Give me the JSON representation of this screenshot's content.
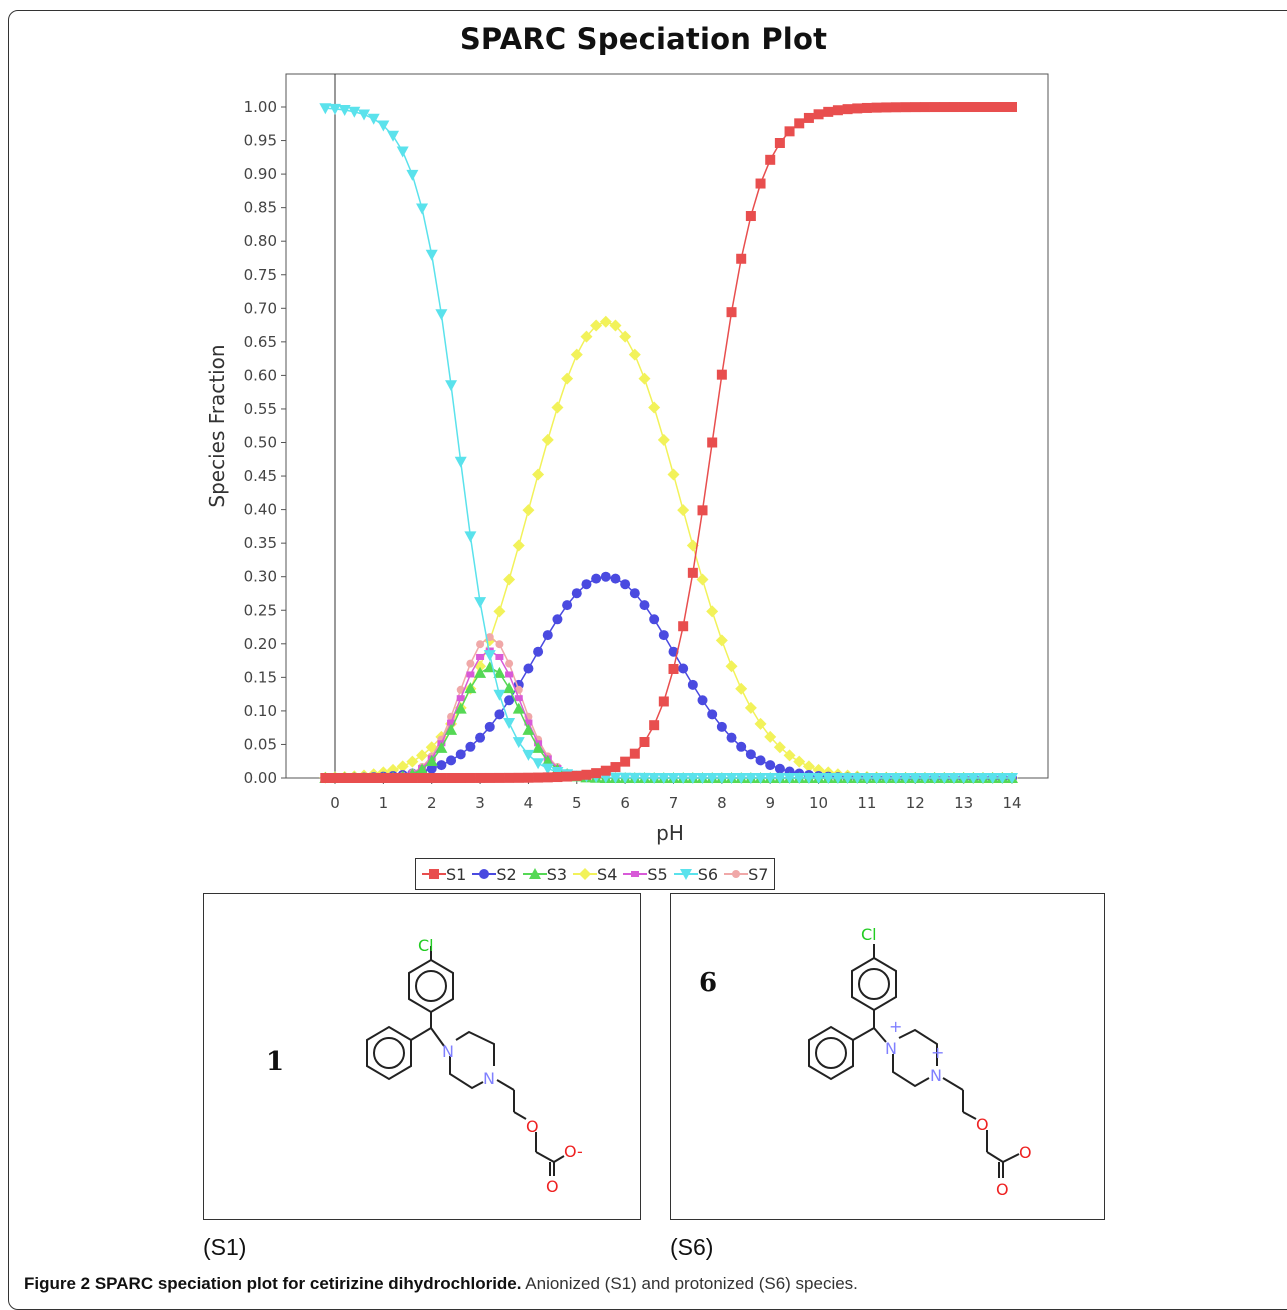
{
  "chart_data": {
    "type": "scatter",
    "title": "SPARC Speciation Plot",
    "xlabel": "pH",
    "ylabel": "Species Fraction",
    "xlim": [
      -0.9,
      14.8
    ],
    "ylim": [
      0,
      1.05
    ],
    "xticks": [
      0,
      1,
      2,
      3,
      4,
      5,
      6,
      7,
      8,
      9,
      10,
      11,
      12,
      13,
      14
    ],
    "yticks": [
      0,
      0.05,
      0.1,
      0.15,
      0.2,
      0.25,
      0.3,
      0.35,
      0.4,
      0.45,
      0.5,
      0.55,
      0.6,
      0.65,
      0.7,
      0.75,
      0.8,
      0.85,
      0.9,
      0.95,
      1.0
    ],
    "ytick_labels": [
      "0.00",
      "0.05",
      "0.10",
      "0.15",
      "0.20",
      "0.25",
      "0.30",
      "0.35",
      "0.40",
      "0.45",
      "0.50",
      "0.55",
      "0.60",
      "0.65",
      "0.70",
      "0.75",
      "0.80",
      "0.85",
      "0.90",
      "0.95",
      "1.00"
    ],
    "x_step": 0.2,
    "x_start": -0.2,
    "x_end": 14.0,
    "grid": false,
    "legend_position": "bottom-center",
    "vertical_reference_line_x": 0,
    "series": [
      {
        "name": "S1",
        "color": "#e84e4e",
        "marker": "square",
        "peaks": [
          {
            "type": "sigmoid_up",
            "center": 7.8,
            "k": 2.05,
            "amp": 1.0
          }
        ]
      },
      {
        "name": "S2",
        "color": "#4a4ae0",
        "marker": "circle",
        "peaks": [
          {
            "type": "gauss",
            "center": 5.6,
            "width": 1.45,
            "amp": 0.3
          }
        ]
      },
      {
        "name": "S3",
        "color": "#55d855",
        "marker": "triangle-up",
        "peaks": [
          {
            "type": "gauss",
            "center": 3.2,
            "width": 0.62,
            "amp": 0.165
          }
        ]
      },
      {
        "name": "S4",
        "color": "#f2f25a",
        "marker": "diamond",
        "peaks": [
          {
            "type": "gauss",
            "center": 5.6,
            "width": 1.55,
            "amp": 0.68
          }
        ]
      },
      {
        "name": "S5",
        "color": "#d85ad8",
        "marker": "square-small",
        "peaks": [
          {
            "type": "gauss",
            "center": 3.2,
            "width": 0.62,
            "amp": 0.19
          }
        ]
      },
      {
        "name": "S6",
        "color": "#5ae2ec",
        "marker": "triangle-down",
        "peaks": [
          {
            "type": "sigmoid_down",
            "center": 2.55,
            "k": 2.3,
            "amp": 1.0
          }
        ]
      },
      {
        "name": "S7",
        "color": "#f0a8a8",
        "marker": "circle-small",
        "peaks": [
          {
            "type": "gauss",
            "center": 3.2,
            "width": 0.62,
            "amp": 0.21
          }
        ]
      }
    ],
    "key_points": {
      "S1": [
        [
          0,
          0.0
        ],
        [
          6,
          0.02
        ],
        [
          7,
          0.21
        ],
        [
          7.4,
          0.4
        ],
        [
          7.8,
          0.51
        ],
        [
          8.0,
          0.62
        ],
        [
          8.2,
          0.72
        ],
        [
          9,
          0.96
        ],
        [
          10,
          1.0
        ],
        [
          14,
          1.0
        ]
      ],
      "S2": [
        [
          2.8,
          0.01
        ],
        [
          3.2,
          0.04
        ],
        [
          4.0,
          0.2
        ],
        [
          5.0,
          0.29
        ],
        [
          5.6,
          0.3
        ],
        [
          6.6,
          0.27
        ],
        [
          7.0,
          0.23
        ],
        [
          8.0,
          0.09
        ],
        [
          9.0,
          0.01
        ],
        [
          14,
          0.0
        ]
      ],
      "S3": [
        [
          1.6,
          0.01
        ],
        [
          2.4,
          0.07
        ],
        [
          3.2,
          0.165
        ],
        [
          3.8,
          0.13
        ],
        [
          4.6,
          0.01
        ]
      ],
      "S4": [
        [
          2.4,
          0.01
        ],
        [
          3.2,
          0.2
        ],
        [
          4.0,
          0.51
        ],
        [
          5.0,
          0.65
        ],
        [
          5.6,
          0.68
        ],
        [
          6.6,
          0.63
        ],
        [
          7.2,
          0.51
        ],
        [
          8.0,
          0.27
        ],
        [
          9.0,
          0.04
        ],
        [
          10,
          0.0
        ]
      ],
      "S5": [
        [
          1.6,
          0.01
        ],
        [
          2.4,
          0.08
        ],
        [
          3.2,
          0.19
        ],
        [
          4.0,
          0.09
        ],
        [
          4.6,
          0.01
        ]
      ],
      "S6": [
        [
          -0.2,
          1.0
        ],
        [
          0.6,
          0.99
        ],
        [
          1.2,
          0.97
        ],
        [
          1.6,
          0.93
        ],
        [
          2.0,
          0.87
        ],
        [
          2.4,
          0.76
        ],
        [
          2.6,
          0.65
        ],
        [
          2.8,
          0.53
        ],
        [
          3.0,
          0.29
        ],
        [
          3.2,
          0.2
        ],
        [
          3.6,
          0.07
        ],
        [
          4.0,
          0.01
        ],
        [
          4.4,
          0.0
        ]
      ],
      "S7": [
        [
          1.6,
          0.01
        ],
        [
          2.4,
          0.09
        ],
        [
          3.2,
          0.21
        ],
        [
          4.0,
          0.1
        ],
        [
          4.6,
          0.01
        ]
      ]
    }
  },
  "legend": {
    "items": [
      "S1",
      "S2",
      "S3",
      "S4",
      "S5",
      "S6",
      "S7"
    ]
  },
  "structures": {
    "panel_1": {
      "number": "1",
      "caption": "(S1)",
      "atoms": {
        "cl": "Cl",
        "n1": "N",
        "n2": "N",
        "o1": "O",
        "o2": "O",
        "o_minus": "O-"
      }
    },
    "panel_6": {
      "number": "6",
      "caption": "(S6)",
      "atoms": {
        "cl": "Cl",
        "n1": "N",
        "n2": "N",
        "plus1": "+",
        "plus2": "+",
        "o1": "O",
        "o2": "O",
        "o3": "O"
      }
    }
  },
  "figure_caption": {
    "bold": "Figure 2 SPARC speciation plot for cetirizine dihydrochloride.",
    "rest": " Anionized (S1) and protonized (S6) species."
  },
  "colors": {
    "axis": "#555555",
    "frame": "#333333",
    "chlorine": "#22cc22",
    "nitrogen": "#8080ff",
    "oxygen": "#ee2222"
  }
}
